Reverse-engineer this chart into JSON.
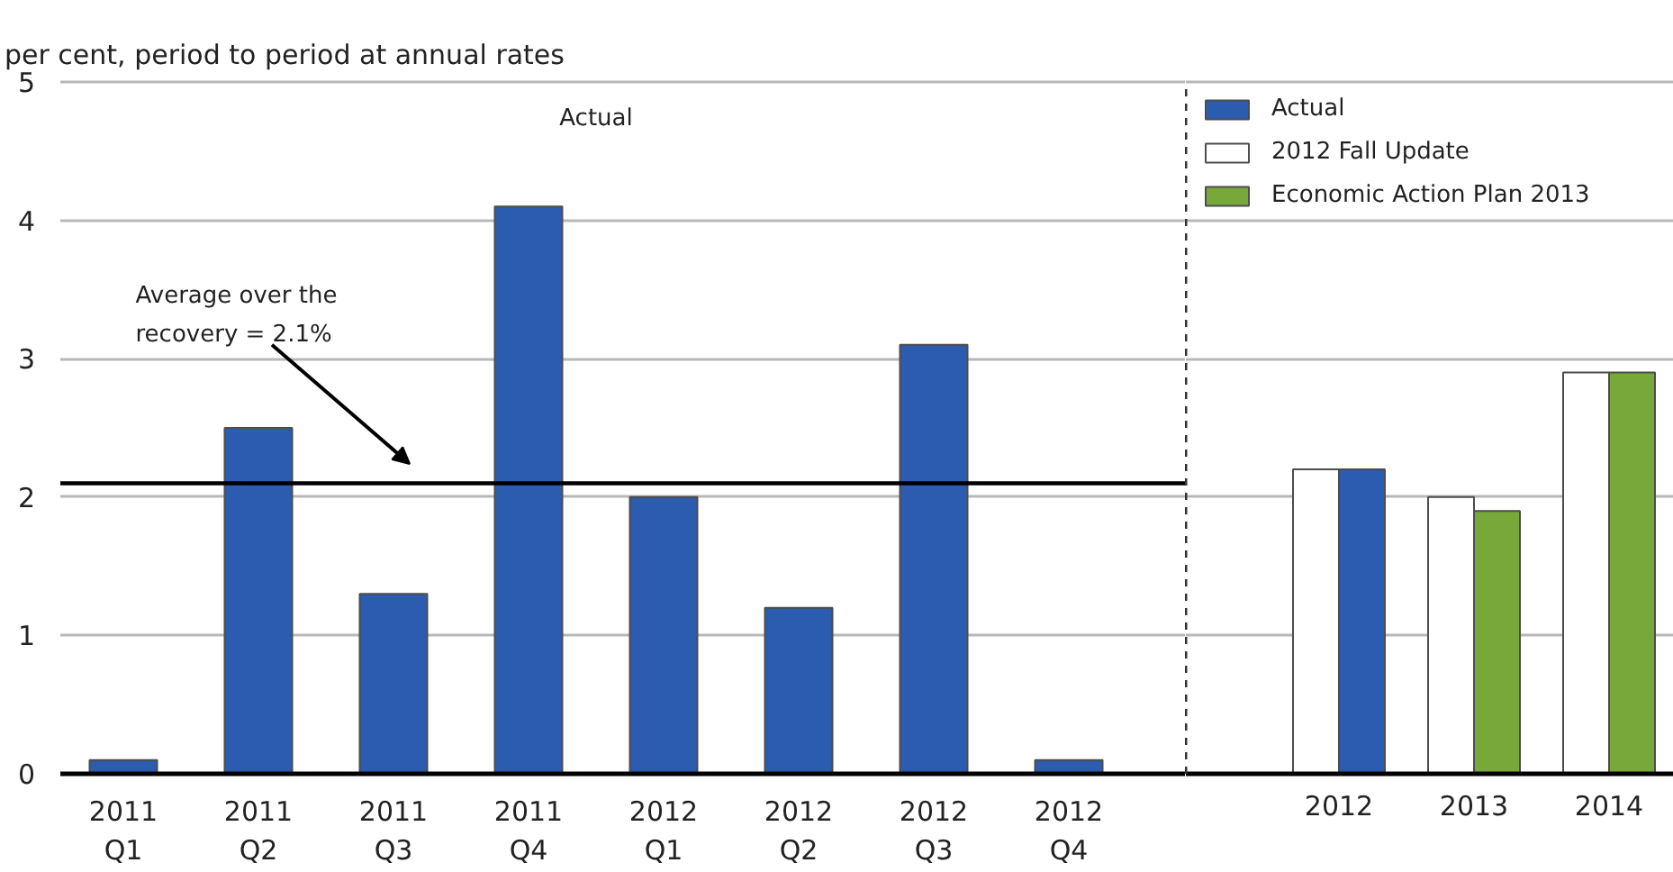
{
  "chart_data": [
    {
      "type": "bar",
      "title": "Actual",
      "ylabel": "per cent, period to period at annual rates",
      "categories": [
        "2011 Q1",
        "2011 Q2",
        "2011 Q3",
        "2011 Q4",
        "2012 Q1",
        "2012 Q2",
        "2012 Q3",
        "2012 Q4"
      ],
      "values": [
        0.1,
        2.5,
        1.3,
        4.1,
        2.0,
        1.2,
        3.1,
        0.1
      ],
      "color": "#2b5caf",
      "ylim": [
        0,
        5
      ],
      "yticks": [
        0,
        1,
        2,
        3,
        4,
        5
      ],
      "grid": "y",
      "ref_lines": [
        {
          "axis": "y",
          "value": 2.1,
          "label": "Average over the recovery = 2.1%",
          "color": "#000000"
        }
      ]
    },
    {
      "type": "bar",
      "categories": [
        "2012",
        "2013",
        "2014"
      ],
      "series": [
        {
          "name": "Actual",
          "color": "#2b5caf",
          "values": [
            2.2,
            null,
            null
          ]
        },
        {
          "name": "2012 Fall Update",
          "color": "#ffffff",
          "values": [
            2.2,
            2.0,
            2.9
          ]
        },
        {
          "name": "Economic Action Plan 2013",
          "color": "#79a83a",
          "values": [
            null,
            1.9,
            2.9
          ]
        }
      ],
      "ylim": [
        0,
        5
      ],
      "yticks": [
        0,
        1,
        2,
        3,
        4,
        5
      ],
      "grid": "y",
      "legend": "top left",
      "tick_labels": "x"
    }
  ]
}
